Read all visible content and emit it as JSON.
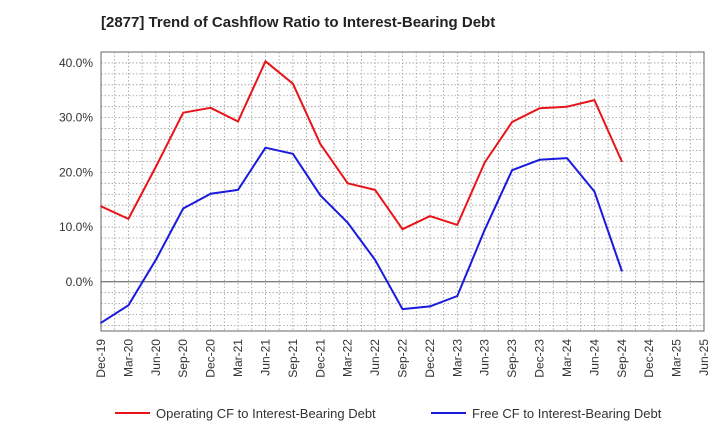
{
  "chart_data": {
    "type": "line",
    "title": "[2877]  Trend of Cashflow Ratio to Interest-Bearing Debt",
    "xlabel": "",
    "ylabel": "",
    "grid": true,
    "legend_position": "bottom",
    "y_ticks": [
      0,
      10,
      20,
      30,
      40
    ],
    "y_tick_labels": [
      "0.0%",
      "10.0%",
      "20.0%",
      "30.0%",
      "40.0%"
    ],
    "ylim": [
      -9,
      42
    ],
    "x_tick_labels": [
      "Dec-19",
      "Mar-20",
      "Jun-20",
      "Sep-20",
      "Dec-20",
      "Mar-21",
      "Jun-21",
      "Sep-21",
      "Dec-21",
      "Mar-22",
      "Jun-22",
      "Sep-22",
      "Dec-22",
      "Mar-23",
      "Jun-23",
      "Sep-23",
      "Dec-23",
      "Mar-24",
      "Jun-24",
      "Sep-24",
      "Dec-24",
      "Mar-25",
      "Jun-25"
    ],
    "x": [
      "Dec-19",
      "Mar-20",
      "Jun-20",
      "Sep-20",
      "Dec-20",
      "Mar-21",
      "Jun-21",
      "Sep-21",
      "Dec-21",
      "Mar-22",
      "Jun-22",
      "Sep-22",
      "Dec-22",
      "Mar-23",
      "Jun-23",
      "Sep-23",
      "Dec-23",
      "Mar-24",
      "Jun-24",
      "Sep-24"
    ],
    "series": [
      {
        "name": "Operating CF to Interest-Bearing Debt",
        "color": "#e8141a",
        "values": [
          13.8,
          11.5,
          21.0,
          30.9,
          31.8,
          29.3,
          40.3,
          36.2,
          25.2,
          18.0,
          16.8,
          9.6,
          12.0,
          10.4,
          21.8,
          29.2,
          31.7,
          32.0,
          33.2,
          22.0
        ]
      },
      {
        "name": "Free CF to Interest-Bearing Debt",
        "color": "#1a1adf",
        "values": [
          -7.5,
          -4.3,
          4.0,
          13.4,
          16.1,
          16.8,
          24.5,
          23.4,
          15.8,
          10.8,
          4.0,
          -5.0,
          -4.5,
          -2.6,
          9.5,
          20.4,
          22.3,
          22.6,
          16.5,
          2.0
        ]
      }
    ]
  }
}
